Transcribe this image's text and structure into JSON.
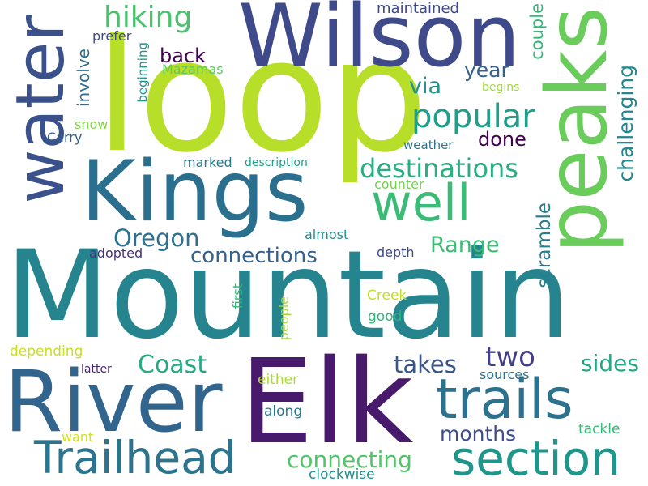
{
  "words": [
    {
      "text": "Mountain",
      "color": "#26848e"
    },
    {
      "text": "loop",
      "color": "#b7de28"
    },
    {
      "text": "Elk",
      "color": "#481a6c"
    },
    {
      "text": "Kings",
      "color": "#2a6f8e"
    },
    {
      "text": "Wilson",
      "color": "#3e4a89"
    },
    {
      "text": "River",
      "color": "#31658e"
    },
    {
      "text": "peaks",
      "color": "#69cc5b"
    },
    {
      "text": "water",
      "color": "#3b518b"
    },
    {
      "text": "trails",
      "color": "#2c728e"
    },
    {
      "text": "section",
      "color": "#1f968b"
    },
    {
      "text": "Trailhead",
      "color": "#2c738e"
    },
    {
      "text": "well",
      "color": "#3bbb75"
    },
    {
      "text": "popular",
      "color": "#1f9e89"
    },
    {
      "text": "destinations",
      "color": "#29af7f"
    },
    {
      "text": "hiking",
      "color": "#4ac16d"
    },
    {
      "text": "two",
      "color": "#433e85"
    },
    {
      "text": "Coast",
      "color": "#25ab82"
    },
    {
      "text": "Oregon",
      "color": "#2d718e"
    },
    {
      "text": "connections",
      "color": "#34618d"
    },
    {
      "text": "takes",
      "color": "#39568c"
    },
    {
      "text": "sides",
      "color": "#22a884"
    },
    {
      "text": "connecting",
      "color": "#52c569"
    },
    {
      "text": "months",
      "color": "#3e4c8a"
    },
    {
      "text": "Range",
      "color": "#3dbc74"
    },
    {
      "text": "via",
      "color": "#21918c"
    },
    {
      "text": "year",
      "color": "#33638d"
    },
    {
      "text": "back",
      "color": "#440154"
    },
    {
      "text": "done",
      "color": "#440154"
    },
    {
      "text": "challenging",
      "color": "#23888e"
    },
    {
      "text": "scramble",
      "color": "#297b8e"
    },
    {
      "text": "couple",
      "color": "#35b779"
    },
    {
      "text": "involve",
      "color": "#2e6d8e"
    },
    {
      "text": "maintained",
      "color": "#3f4788"
    },
    {
      "text": "prefer",
      "color": "#3e4a89"
    },
    {
      "text": "Mazamas",
      "color": "#5ec962"
    },
    {
      "text": "beginning",
      "color": "#1f958b"
    },
    {
      "text": "snow",
      "color": "#84d44b"
    },
    {
      "text": "Carry",
      "color": "#33638d"
    },
    {
      "text": "weather",
      "color": "#2c738e"
    },
    {
      "text": "begins",
      "color": "#a0da39"
    },
    {
      "text": "marked",
      "color": "#2a788e"
    },
    {
      "text": "description",
      "color": "#1f9e89"
    },
    {
      "text": "counter",
      "color": "#75d054"
    },
    {
      "text": "almost",
      "color": "#228c8d"
    },
    {
      "text": "adopted",
      "color": "#46327e"
    },
    {
      "text": "depth",
      "color": "#3e4a89"
    },
    {
      "text": "first",
      "color": "#35b779"
    },
    {
      "text": "Creek",
      "color": "#c2df23"
    },
    {
      "text": "good",
      "color": "#2fb47c"
    },
    {
      "text": "people",
      "color": "#a0da39"
    },
    {
      "text": "depending",
      "color": "#c8e020"
    },
    {
      "text": "latter",
      "color": "#482475"
    },
    {
      "text": "sources",
      "color": "#2c728e"
    },
    {
      "text": "either",
      "color": "#addc30"
    },
    {
      "text": "along",
      "color": "#2a788e"
    },
    {
      "text": "want",
      "color": "#d2e21b"
    },
    {
      "text": "tackle",
      "color": "#38b977"
    },
    {
      "text": "clockwise",
      "color": "#21918c"
    }
  ]
}
